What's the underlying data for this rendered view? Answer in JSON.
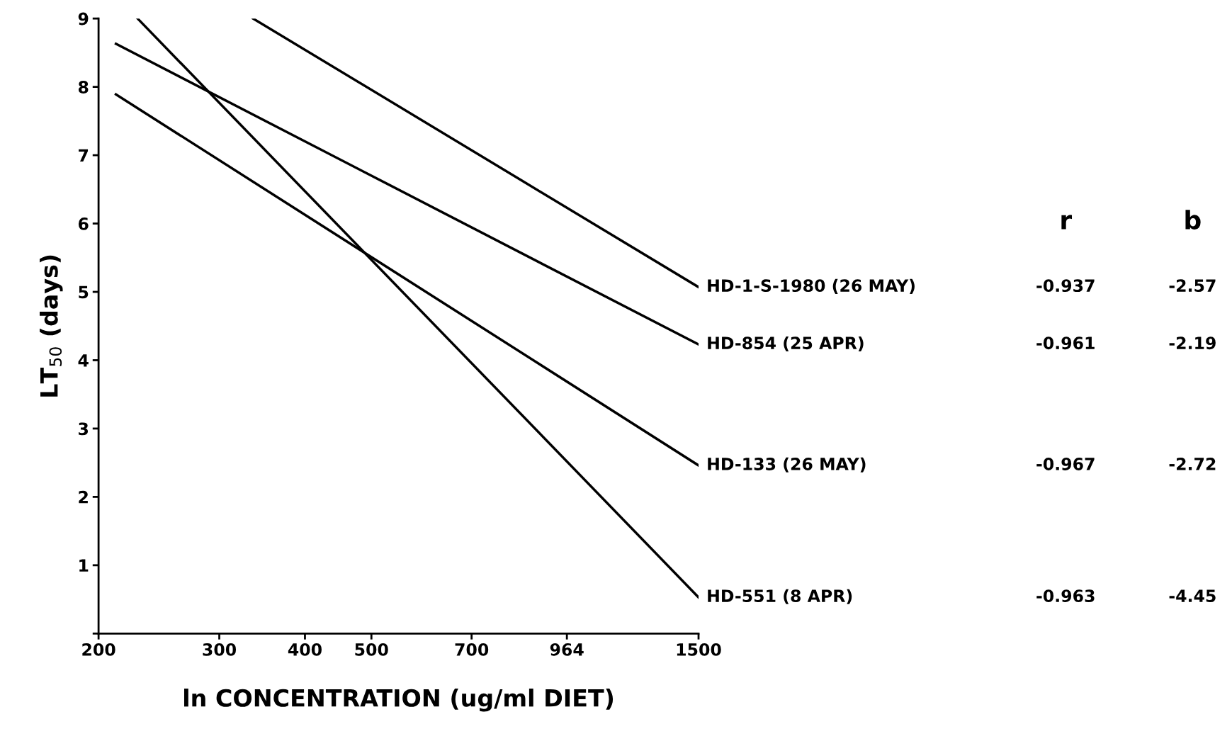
{
  "chart_data": {
    "type": "line",
    "xlabel": "ln CONCENTRATION (ug/ml DIET)",
    "ylabel": "LT$_{50}$ (days)",
    "log": "x",
    "xlim": [
      200,
      1500
    ],
    "xticks": [
      200,
      300,
      400,
      500,
      700,
      964,
      1500
    ],
    "ylim": [
      0,
      9
    ],
    "yticks": [
      {
        "value": 0,
        "label": null
      },
      1,
      2,
      3,
      4,
      5,
      6,
      7,
      8,
      9
    ],
    "grid": false,
    "legend": false,
    "marker": "none",
    "line_style": "solid",
    "series": [
      {
        "name": "HD-1-S-1980 (26 MAY)",
        "color": "#000000",
        "x": [
          336,
          1500
        ],
        "values": [
          9.0,
          5.07
        ]
      },
      {
        "name": "HD-854 (25 APR)",
        "color": "#000000",
        "x": [
          212,
          1500
        ],
        "values": [
          8.63,
          4.23
        ]
      },
      {
        "name": "HD-133 (26 MAY)",
        "color": "#000000",
        "x": [
          212,
          1500
        ],
        "values": [
          7.89,
          2.46
        ]
      },
      {
        "name": "HD-551 (8 APR)",
        "color": "#000000",
        "x": [
          228,
          1500
        ],
        "values": [
          9.0,
          0.53
        ]
      }
    ],
    "annotations": [
      "r",
      "b",
      "-0.937",
      "-2.57",
      "-0.961",
      "-2.19",
      "-0.967",
      "-2.72",
      "-0.963",
      "-4.45"
    ]
  }
}
